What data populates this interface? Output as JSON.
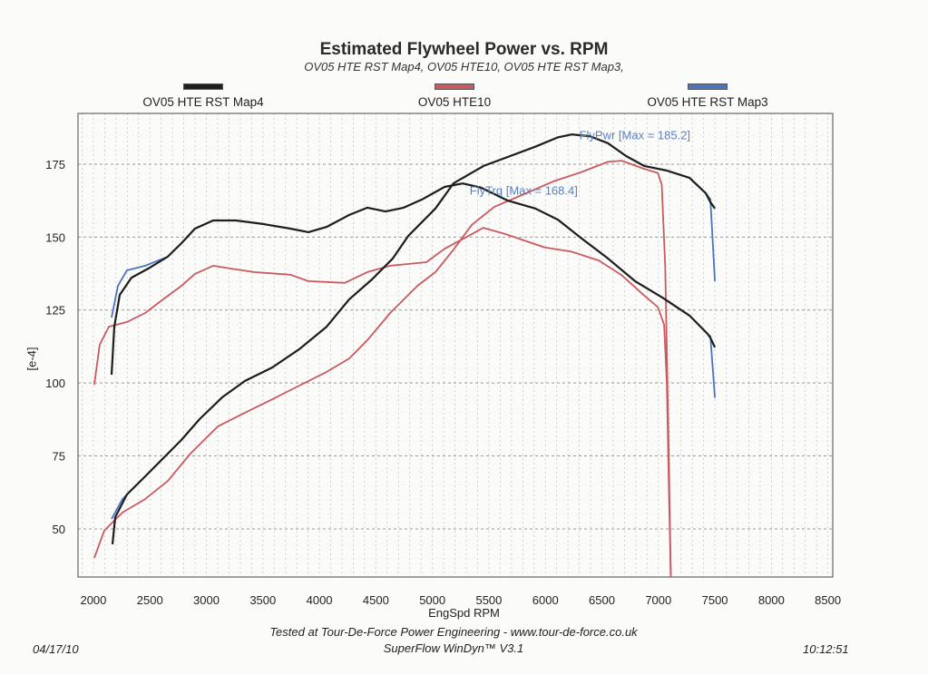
{
  "chart_data": {
    "type": "line",
    "title": "Estimated Flywheel Power vs. RPM",
    "subtitle": "OV05 HTE RST Map4, OV05 HTE10, OV05 HTE RST Map3,",
    "xlabel": "EngSpd RPM",
    "ylabel": "[e-4]",
    "xlim": [
      1864,
      8543
    ],
    "ylim": [
      33.5,
      192.4
    ],
    "xticks": [
      2000,
      2500,
      3000,
      3500,
      4000,
      4500,
      5000,
      5500,
      6000,
      6500,
      7000,
      7500,
      8000,
      8500
    ],
    "yticks": [
      50,
      75,
      100,
      125,
      150,
      175
    ],
    "grid": true,
    "legend_placement": "top",
    "legend": [
      {
        "name": "OV05 HTE RST Map4",
        "color": "#1e1e1e"
      },
      {
        "name": "OV05 HTE10",
        "color": "#c95a60"
      },
      {
        "name": "OV05 HTE RST Map3",
        "color": "#4a74c0"
      }
    ],
    "annotations": [
      {
        "text": "FlyPwr [Max = 185.2]",
        "x": 6300,
        "y": 183.5
      },
      {
        "text": "FlyTrq [Max = 168.4]",
        "x": 5330,
        "y": 164.5
      }
    ],
    "series": [
      {
        "name": "OV05 HTE10",
        "measure": "FlyTrq",
        "color": "#c95a60",
        "x": [
          2008,
          2056,
          2137,
          2297,
          2458,
          2618,
          2779,
          2899,
          3060,
          3220,
          3421,
          3743,
          3903,
          4224,
          4425,
          4626,
          4947,
          5108,
          5300,
          5450,
          5650,
          5991,
          6232,
          6473,
          6674,
          6874,
          6995,
          7051,
          7075,
          7095,
          7110
        ],
        "y": [
          99.4,
          113.1,
          119.3,
          120.9,
          124.0,
          128.7,
          133.3,
          137.4,
          140.2,
          139.2,
          138.0,
          137.1,
          134.9,
          134.3,
          138.0,
          140.2,
          141.4,
          146.0,
          150.0,
          153.2,
          151.0,
          146.5,
          145.0,
          142.0,
          137.0,
          130.0,
          126.0,
          120.0,
          100.0,
          60.0,
          33.5
        ]
      },
      {
        "name": "OV05 HTE10",
        "measure": "FlyPwr",
        "color": "#c95a60",
        "x": [
          2008,
          2096,
          2257,
          2458,
          2658,
          2859,
          3100,
          3341,
          3582,
          3823,
          4064,
          4264,
          4425,
          4626,
          4867,
          5027,
          5188,
          5349,
          5549,
          5791,
          6071,
          6312,
          6553,
          6674,
          6874,
          6995,
          7030,
          7060,
          7090,
          7110
        ],
        "y": [
          40.0,
          49.4,
          55.6,
          60.2,
          66.4,
          75.8,
          85.1,
          89.8,
          94.4,
          99.1,
          103.8,
          108.4,
          114.7,
          124.0,
          133.3,
          138.0,
          145.8,
          154.2,
          160.4,
          164.4,
          169.1,
          172.2,
          175.8,
          176.2,
          173.4,
          172.0,
          168.0,
          140.0,
          80.0,
          33.5
        ]
      },
      {
        "name": "OV05 HTE RST Map3",
        "measure": "FlyTrq",
        "color": "#4a74c0",
        "x": [
          2161,
          2217,
          2297,
          2458,
          2658,
          2779,
          2899,
          3060,
          3261,
          3502,
          3743,
          3903,
          4064,
          4264,
          4425,
          4586,
          4746,
          4907,
          5108,
          5268,
          5429,
          5670,
          5911,
          6111,
          6312,
          6553,
          6794,
          7035,
          7276,
          7436,
          7460,
          7500
        ],
        "y": [
          122.4,
          133.3,
          138.6,
          140.2,
          143.3,
          147.9,
          152.9,
          155.7,
          155.7,
          154.5,
          152.9,
          151.7,
          153.5,
          157.6,
          160.1,
          158.8,
          160.1,
          162.9,
          167.2,
          168.4,
          167.0,
          162.5,
          159.8,
          156.0,
          149.8,
          142.7,
          134.9,
          129.3,
          123.1,
          116.8,
          116.0,
          94.9
        ]
      },
      {
        "name": "OV05 HTE RST Map3",
        "measure": "FlyPwr",
        "color": "#4a74c0",
        "x": [
          2161,
          2257,
          2458,
          2618,
          2779,
          2940,
          3140,
          3341,
          3582,
          3823,
          4064,
          4264,
          4465,
          4650,
          4786,
          5027,
          5188,
          5453,
          5670,
          5911,
          6111,
          6232,
          6392,
          6553,
          6714,
          6874,
          7075,
          7276,
          7420,
          7460,
          7500
        ],
        "y": [
          53.4,
          60.2,
          68.0,
          74.2,
          80.5,
          87.6,
          95.1,
          100.7,
          105.3,
          111.6,
          119.3,
          128.7,
          135.5,
          142.7,
          150.4,
          159.8,
          168.5,
          174.4,
          177.5,
          181.0,
          184.2,
          185.2,
          184.6,
          182.2,
          177.8,
          174.4,
          172.8,
          170.3,
          165.0,
          163.0,
          134.9
        ]
      },
      {
        "name": "OV05 HTE RST Map4",
        "measure": "FlyTrq",
        "color": "#1e1e1e",
        "x": [
          2161,
          2185,
          2233,
          2337,
          2498,
          2658,
          2779,
          2899,
          3060,
          3261,
          3502,
          3743,
          3903,
          4064,
          4264,
          4425,
          4586,
          4746,
          4907,
          5108,
          5268,
          5429,
          5670,
          5911,
          6111,
          6312,
          6553,
          6794,
          7035,
          7276,
          7436,
          7460,
          7500
        ],
        "y": [
          102.8,
          119.3,
          130.2,
          136.1,
          139.5,
          143.3,
          147.9,
          152.9,
          155.7,
          155.7,
          154.5,
          152.9,
          151.7,
          153.5,
          157.6,
          160.1,
          158.8,
          160.1,
          162.9,
          167.2,
          168.4,
          167.0,
          162.5,
          159.8,
          156.0,
          149.8,
          142.7,
          134.9,
          129.3,
          123.1,
          116.8,
          115.5,
          112.2
        ]
      },
      {
        "name": "OV05 HTE RST Map4",
        "measure": "FlyPwr",
        "color": "#1e1e1e",
        "x": [
          2169,
          2193,
          2297,
          2458,
          2618,
          2779,
          2940,
          3140,
          3341,
          3582,
          3823,
          4064,
          4264,
          4465,
          4650,
          4786,
          5027,
          5188,
          5453,
          5670,
          5911,
          6111,
          6232,
          6392,
          6553,
          6714,
          6874,
          7075,
          7276,
          7420,
          7460,
          7500
        ],
        "y": [
          44.7,
          54.0,
          61.8,
          68.0,
          74.2,
          80.5,
          87.6,
          95.1,
          100.7,
          105.3,
          111.6,
          119.3,
          128.7,
          135.5,
          142.7,
          150.4,
          159.8,
          168.5,
          174.4,
          177.5,
          181.0,
          184.2,
          185.2,
          184.6,
          182.2,
          177.8,
          174.4,
          172.8,
          170.3,
          165.0,
          162.0,
          159.8
        ]
      }
    ]
  },
  "footer": {
    "tested_at": "Tested at Tour-De-Force Power Engineering - www.tour-de-force.co.uk",
    "software": "SuperFlow WinDyn™ V3.1",
    "date": "04/17/10",
    "time": "10:12:51"
  }
}
